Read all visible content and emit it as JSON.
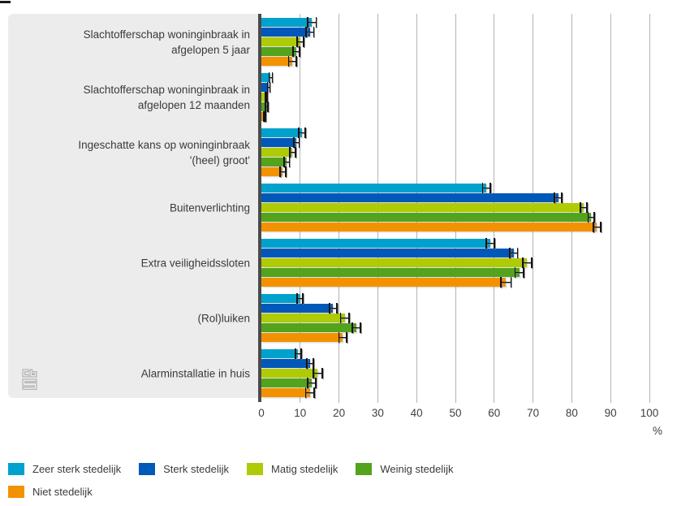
{
  "chart_data": {
    "type": "bar",
    "orientation": "horizontal",
    "categories": [
      "Slachtofferschap woninginbraak in\nafgelopen 5 jaar",
      "Slachtofferschap woninginbraak in\nafgelopen 12 maanden",
      "Ingeschatte kans op woninginbraak\n'(heel) groot'",
      "Buitenverlichting",
      "Extra veiligheidssloten",
      "(Rol)luiken",
      "Alarminstallatie in huis"
    ],
    "series": [
      {
        "name": "Zeer sterk stedelijk",
        "color": "#00a1cd",
        "values": [
          13,
          2.4,
          10.5,
          58,
          59,
          10,
          9.5
        ],
        "errors": [
          1.3,
          0.6,
          1.0,
          1.2,
          1.3,
          0.9,
          0.9
        ]
      },
      {
        "name": "Sterk stedelijk",
        "color": "#0058b8",
        "values": [
          12.5,
          1.9,
          9,
          76.5,
          65,
          18.5,
          12.5
        ],
        "errors": [
          1.2,
          0.5,
          0.9,
          1.1,
          1.2,
          1.1,
          1.0
        ]
      },
      {
        "name": "Matig stedelijk",
        "color": "#afcb05",
        "values": [
          10,
          1.2,
          8,
          83,
          68.5,
          21.5,
          14.5
        ],
        "errors": [
          1.0,
          0.4,
          0.9,
          1.0,
          1.3,
          1.3,
          1.3
        ]
      },
      {
        "name": "Weinig stedelijk",
        "color": "#53a31d",
        "values": [
          9,
          1.4,
          6.5,
          85,
          66.5,
          24.5,
          13
        ],
        "errors": [
          1.0,
          0.5,
          0.9,
          1.0,
          1.3,
          1.2,
          1.2
        ]
      },
      {
        "name": "Niet stedelijk",
        "color": "#f39200",
        "values": [
          8,
          0.9,
          5.5,
          86.5,
          63,
          21,
          12.5
        ],
        "errors": [
          1.2,
          0.4,
          0.9,
          1.1,
          1.5,
          1.2,
          1.3
        ]
      }
    ],
    "xlim": [
      0,
      100
    ],
    "xticks": [
      0,
      10,
      20,
      30,
      40,
      50,
      60,
      70,
      80,
      90,
      100
    ],
    "xlabel": "%",
    "grid": true,
    "error_bars": true,
    "legend_position": "bottom",
    "legend_rows": [
      4,
      1
    ]
  },
  "branding": {
    "logo": "cbs-logo"
  }
}
